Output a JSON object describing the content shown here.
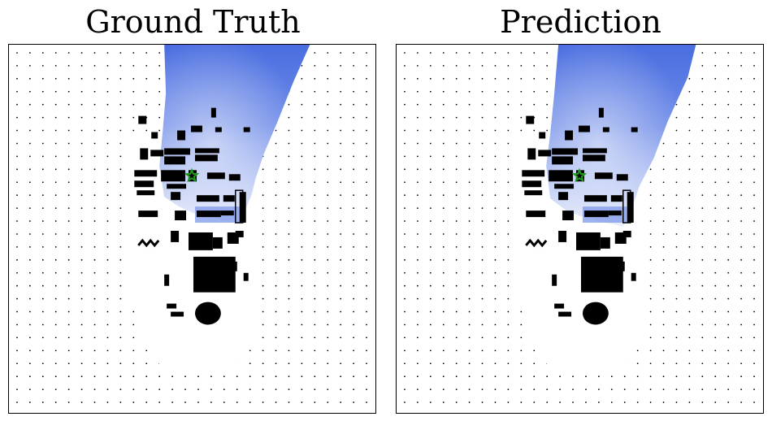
{
  "panels": [
    {
      "title": "Ground Truth"
    },
    {
      "title": "Prediction"
    }
  ],
  "colors": {
    "background": "#ffffff",
    "obstacle": "#000000",
    "grid_dot": "#000000",
    "heatmap_dark": "#4a6ee0",
    "heatmap_light": "#e8edfb",
    "goal_marker": "#1e9a1e"
  },
  "icons": {
    "goal_marker": "star-icon"
  }
}
